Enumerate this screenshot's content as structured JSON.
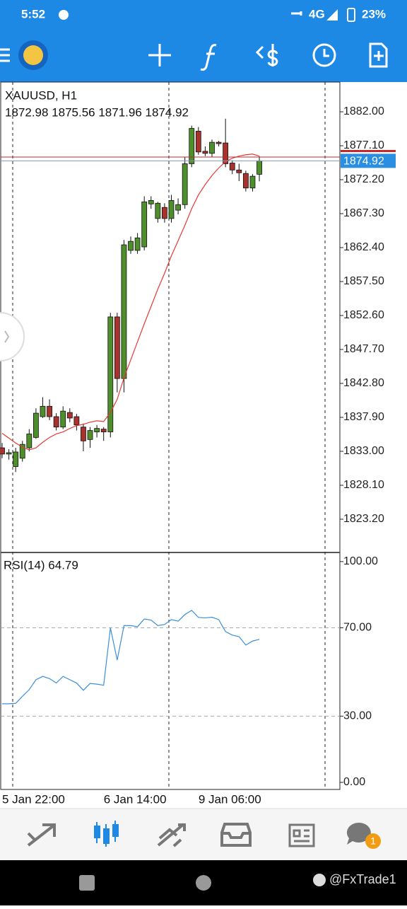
{
  "status_bar": {
    "time": "5:52",
    "network": "4G",
    "battery": "23%"
  },
  "chart_data": [
    {
      "type": "candlestick",
      "title": "XAUUSD, H1",
      "subtitle": "1872.98 1875.56 1871.96 1874.92",
      "categories": [
        "5 Jan 22:00",
        null,
        null,
        null,
        null,
        null,
        null,
        null,
        null,
        null,
        null,
        null,
        null,
        null,
        null,
        "6 Jan 14:00",
        null,
        null,
        null,
        null,
        null,
        null,
        null,
        null,
        null,
        null,
        null,
        null,
        null,
        "9 Jan 06:00",
        null,
        null,
        null,
        null,
        null,
        null,
        null,
        null,
        null
      ],
      "open": [
        1833.5,
        1832.6,
        1830.8,
        1832.0,
        1833.5,
        1835.0,
        1838.0,
        1839.5,
        1838.0,
        1836.5,
        1838.6,
        1838.0,
        1836.5,
        1834.7,
        1835.8,
        1836.2,
        1835.8,
        1852.4,
        1843.5,
        1862.0,
        1862.0,
        1862.5,
        1868.7,
        1866.6,
        1868.2,
        1866.6,
        1867.8,
        1868.6,
        1874.5,
        1879.2,
        1876.3,
        1876.0,
        1877.6,
        1877.5,
        1874.6,
        1873.6,
        1873.1,
        1871.0,
        1872.98
      ],
      "high": [
        1834.2,
        1833.3,
        1833.5,
        1834.5,
        1836.2,
        1839.2,
        1840.8,
        1840.5,
        1838.5,
        1839.5,
        1839.2,
        1838.4,
        1837.0,
        1836.5,
        1836.8,
        1836.5,
        1853.0,
        1853.0,
        1863.5,
        1864.0,
        1864.5,
        1869.8,
        1869.8,
        1869.0,
        1868.8,
        1870.0,
        1869.5,
        1875.5,
        1880.0,
        1879.8,
        1877.0,
        1878.0,
        1877.8,
        1881.0,
        1875.0,
        1874.5,
        1873.5,
        1873.0,
        1875.56
      ],
      "low": [
        1832.0,
        1831.8,
        1830.0,
        1831.5,
        1833.0,
        1834.8,
        1837.8,
        1837.5,
        1836.0,
        1836.2,
        1837.2,
        1836.0,
        1833.0,
        1833.5,
        1835.0,
        1834.5,
        1835.0,
        1841.5,
        1841.5,
        1861.5,
        1861.5,
        1862.0,
        1868.0,
        1866.0,
        1866.0,
        1866.0,
        1867.2,
        1868.0,
        1874.0,
        1875.8,
        1875.6,
        1875.5,
        1877.0,
        1874.0,
        1873.0,
        1872.0,
        1870.5,
        1870.5,
        1871.96
      ],
      "close": [
        1832.6,
        1832.8,
        1832.9,
        1834.0,
        1835.5,
        1838.5,
        1839.5,
        1838.0,
        1836.5,
        1838.8,
        1837.8,
        1836.8,
        1834.5,
        1836.0,
        1836.3,
        1835.8,
        1852.4,
        1843.5,
        1862.8,
        1863.3,
        1863.8,
        1869.0,
        1869.2,
        1868.8,
        1866.6,
        1869.2,
        1868.6,
        1874.5,
        1879.6,
        1876.2,
        1876.0,
        1877.6,
        1877.4,
        1874.5,
        1873.6,
        1873.2,
        1871.0,
        1872.7,
        1874.92
      ],
      "up_color": "#4e8f2c",
      "down_color": "#a8322d",
      "overlay": {
        "color": "#e53935",
        "values": [
          1835.6,
          1834.9,
          1834.2,
          1833.6,
          1833.2,
          1833.5,
          1834.3,
          1835.0,
          1835.5,
          1835.8,
          1836.3,
          1836.7,
          1836.9,
          1837.2,
          1837.4,
          1837.3,
          1838.6,
          1840.5,
          1843.6,
          1846.2,
          1848.8,
          1851.4,
          1853.9,
          1856.4,
          1858.7,
          1861.2,
          1863.4,
          1865.6,
          1868.0,
          1870.0,
          1871.5,
          1872.8,
          1873.9,
          1874.8,
          1875.3,
          1875.6,
          1875.8,
          1875.9,
          1875.6
        ]
      },
      "bid": 1874.92,
      "ask": 1875.47,
      "ylim": [
        1818.5,
        1886.29
      ],
      "yticks": [
        {
          "value": 1882.0,
          "label": "1882.00"
        },
        {
          "value": 1877.1,
          "label": "1877.10"
        },
        {
          "value": 1872.2,
          "label": "1872.20"
        },
        {
          "value": 1867.3,
          "label": "1867.30"
        },
        {
          "value": 1862.4,
          "label": "1862.40"
        },
        {
          "value": 1857.5,
          "label": "1857.50"
        },
        {
          "value": 1852.6,
          "label": "1852.60"
        },
        {
          "value": 1847.7,
          "label": "1847.70"
        },
        {
          "value": 1842.8,
          "label": "1842.80"
        },
        {
          "value": 1837.9,
          "label": "1837.90"
        },
        {
          "value": 1833.0,
          "label": "1833.00"
        },
        {
          "value": 1828.1,
          "label": "1828.10"
        },
        {
          "value": 1823.2,
          "label": "1823.20"
        }
      ]
    },
    {
      "type": "line",
      "title": "RSI(14) 64.79",
      "series": [
        {
          "color": "#3b8fd8",
          "values": [
            35.6,
            35.6,
            35.8,
            39.0,
            42.0,
            46.5,
            48.0,
            47.0,
            45.0,
            48.0,
            46.5,
            45.0,
            41.7,
            44.8,
            44.5,
            44.0,
            70.0,
            55.4,
            71.0,
            71.0,
            70.5,
            74.0,
            73.5,
            71.0,
            71.5,
            73.7,
            73.0,
            76.0,
            77.9,
            74.7,
            74.5,
            74.8,
            73.7,
            68.3,
            66.7,
            66.0,
            62.2,
            64.0,
            64.79
          ]
        }
      ],
      "ylim": [
        -3.2,
        103.8
      ],
      "yticks": [
        {
          "value": 100,
          "label": "100.00"
        },
        {
          "value": 70,
          "label": "70.00"
        },
        {
          "value": 30,
          "label": "30.00"
        },
        {
          "value": 0,
          "label": "0.00"
        }
      ],
      "level_lines": [
        70,
        30
      ]
    }
  ],
  "notification_badge": "1",
  "watermark": "@FxTrade1"
}
